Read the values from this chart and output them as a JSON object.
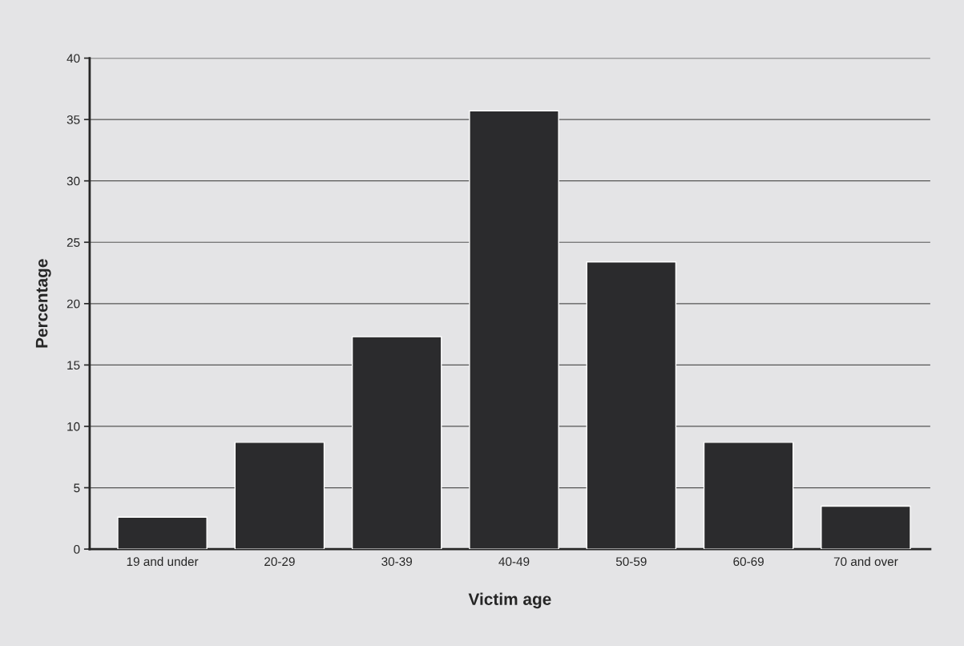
{
  "chart_data": {
    "type": "bar",
    "xlabel": "Victim age",
    "ylabel": "Percentage",
    "categories": [
      "19 and under",
      "20-29",
      "30-39",
      "40-49",
      "50-59",
      "60-69",
      "70 and over"
    ],
    "values": [
      2.6,
      8.7,
      17.3,
      35.7,
      23.4,
      8.7,
      3.5
    ],
    "color": "#2b2b2d",
    "ylim": [
      0,
      40
    ],
    "yticks": [
      0,
      5,
      10,
      15,
      20,
      25,
      30,
      35,
      40
    ],
    "grid": "y"
  }
}
